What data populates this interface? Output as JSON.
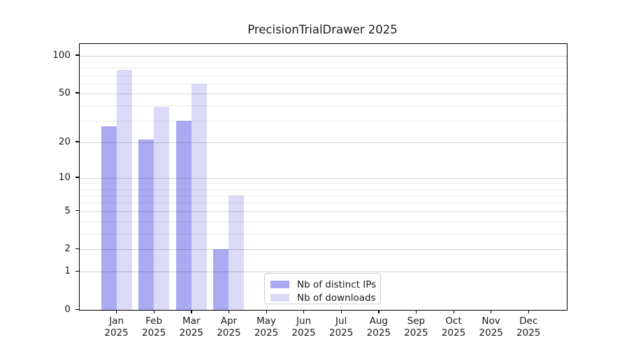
{
  "chart_data": {
    "type": "bar",
    "title": "PrecisionTrialDrawer 2025",
    "categories": [
      "Jan",
      "Feb",
      "Mar",
      "Apr",
      "May",
      "Jun",
      "Jul",
      "Aug",
      "Sep",
      "Oct",
      "Nov",
      "Dec"
    ],
    "category_year": "2025",
    "series": [
      {
        "name": "Nb of distinct IPs",
        "color": "#aaaaf2",
        "values": [
          27,
          21,
          30,
          2,
          0,
          0,
          0,
          0,
          0,
          0,
          0,
          0
        ]
      },
      {
        "name": "Nb of downloads",
        "color": "#dbdbf8",
        "values": [
          77,
          39,
          60,
          7,
          0,
          0,
          0,
          0,
          0,
          0,
          0,
          0
        ]
      }
    ],
    "yscale": "log1p",
    "ylim": [
      0,
      124
    ],
    "yticks": [
      0,
      1,
      2,
      5,
      10,
      20,
      50,
      100
    ],
    "yticks_minor": [
      3,
      4,
      6,
      7,
      8,
      9,
      30,
      40,
      60,
      70,
      80,
      90
    ],
    "xlabel": "",
    "ylabel": "",
    "grid": true,
    "legend_position": "lower center",
    "background": "#ffffff",
    "gridline_major_color": "#d6d6d6",
    "gridline_minor_color": "#ececec"
  }
}
